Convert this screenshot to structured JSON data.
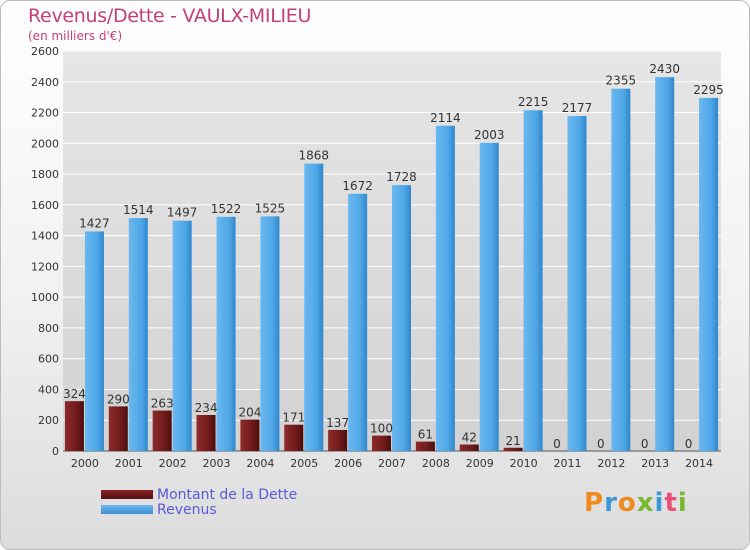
{
  "title": "Revenus/Dette - VAULX-MILIEU",
  "subtitle": "(en milliers d'€)",
  "logo_text": "Proxiti",
  "logo_colors": [
    "#f08a1e",
    "#3a9ad9",
    "#f08a1e",
    "#7ab82e",
    "#3a9ad9",
    "#e94e77",
    "#7ab82e"
  ],
  "colors": {
    "debt": "#6e1a1a",
    "revenue": "#4ea6e6",
    "grid": "#ffffff",
    "text": "#333333",
    "title": "#c3407a",
    "legend_text": "#5a5ad8"
  },
  "chart_data": {
    "type": "bar",
    "categories": [
      "2000",
      "2001",
      "2002",
      "2003",
      "2004",
      "2005",
      "2006",
      "2007",
      "2008",
      "2009",
      "2010",
      "2011",
      "2012",
      "2013",
      "2014"
    ],
    "series": [
      {
        "name": "Montant de la Dette",
        "values": [
          324,
          290,
          263,
          234,
          204,
          171,
          137,
          100,
          61,
          42,
          21,
          0,
          0,
          0,
          0
        ]
      },
      {
        "name": "Revenus",
        "values": [
          1427,
          1514,
          1497,
          1522,
          1525,
          1868,
          1672,
          1728,
          2114,
          2003,
          2215,
          2177,
          2355,
          2430,
          2295
        ]
      }
    ],
    "ylim": [
      0,
      2600
    ],
    "yticks": [
      0,
      200,
      400,
      600,
      800,
      1000,
      1200,
      1400,
      1600,
      1800,
      2000,
      2200,
      2400,
      2600
    ],
    "grid": true,
    "legend_position": "bottom-left"
  }
}
